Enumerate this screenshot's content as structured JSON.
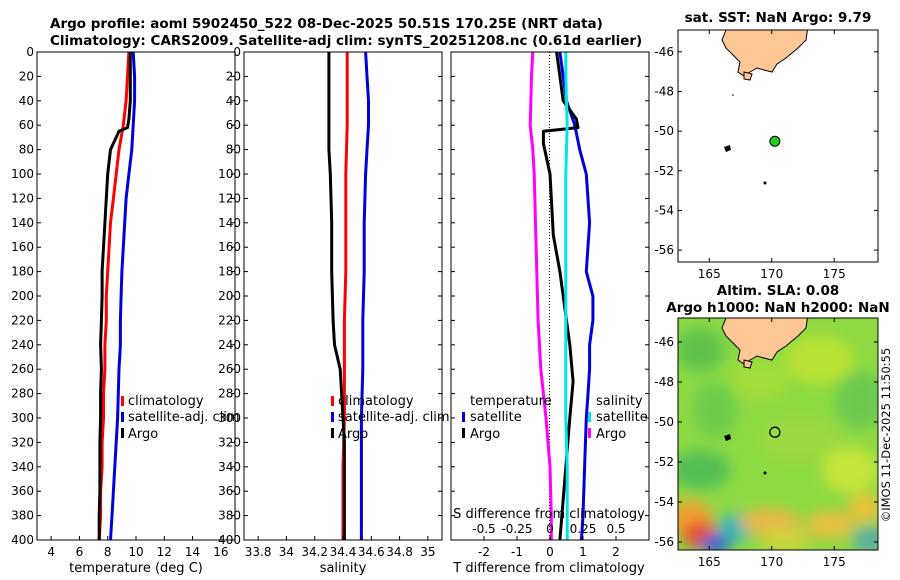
{
  "header": {
    "line1": "Argo profile: aoml 5902450_522 08-Dec-2025 50.51S 170.25E (NRT data)",
    "line2": "Climatology: CARS2009. Satellite-adj clim: synTS_20251208.nc (0.61d earlier)"
  },
  "watermark": "©IMOS 11-Dec-2025 11:50:55",
  "colors": {
    "climatology": "#ff0000",
    "satellite": "#0000dd",
    "argo": "#000000",
    "salinity_sat": "#00e5e5",
    "salinity_diff": "#ff00ff",
    "land": "#fdc795",
    "float_marker": "#22cc22"
  },
  "chart_data": [
    {
      "type": "line",
      "name": "temperature-profile",
      "xlabel": "temperature (deg C)",
      "ylabel": "",
      "xlim": [
        3,
        17
      ],
      "xticks": [
        4,
        6,
        8,
        10,
        12,
        14,
        16
      ],
      "ylim": [
        400,
        0
      ],
      "yticks": [
        0,
        20,
        40,
        60,
        80,
        100,
        120,
        140,
        160,
        180,
        200,
        220,
        240,
        260,
        280,
        300,
        320,
        340,
        360,
        380,
        400
      ],
      "legend": [
        "climatology",
        "satellite-adj. clim",
        "Argo"
      ],
      "series": [
        {
          "name": "climatology",
          "color": "#ff0000",
          "points": [
            [
              9.5,
              0
            ],
            [
              9.4,
              20
            ],
            [
              9.3,
              40
            ],
            [
              9.1,
              60
            ],
            [
              8.8,
              80
            ],
            [
              8.6,
              100
            ],
            [
              8.4,
              120
            ],
            [
              8.2,
              140
            ],
            [
              8.1,
              160
            ],
            [
              8.0,
              180
            ],
            [
              7.9,
              200
            ],
            [
              7.9,
              220
            ],
            [
              7.8,
              240
            ],
            [
              7.8,
              260
            ],
            [
              7.7,
              280
            ],
            [
              7.7,
              300
            ],
            [
              7.6,
              320
            ],
            [
              7.6,
              340
            ],
            [
              7.5,
              360
            ],
            [
              7.5,
              380
            ],
            [
              7.4,
              400
            ]
          ]
        },
        {
          "name": "satellite-adj. clim",
          "color": "#0000dd",
          "points": [
            [
              9.8,
              0
            ],
            [
              9.9,
              20
            ],
            [
              9.9,
              40
            ],
            [
              9.8,
              60
            ],
            [
              9.7,
              80
            ],
            [
              9.5,
              100
            ],
            [
              9.3,
              120
            ],
            [
              9.2,
              140
            ],
            [
              9.1,
              160
            ],
            [
              9.0,
              180
            ],
            [
              8.95,
              200
            ],
            [
              8.9,
              220
            ],
            [
              8.9,
              240
            ],
            [
              8.8,
              260
            ],
            [
              8.75,
              280
            ],
            [
              8.7,
              300
            ],
            [
              8.6,
              320
            ],
            [
              8.5,
              340
            ],
            [
              8.4,
              360
            ],
            [
              8.3,
              380
            ],
            [
              8.2,
              400
            ]
          ]
        },
        {
          "name": "Argo",
          "color": "#000000",
          "points": [
            [
              9.6,
              0
            ],
            [
              9.6,
              20
            ],
            [
              9.6,
              40
            ],
            [
              9.5,
              55
            ],
            [
              9.4,
              62
            ],
            [
              8.8,
              65
            ],
            [
              8.6,
              70
            ],
            [
              8.2,
              80
            ],
            [
              8.0,
              100
            ],
            [
              7.9,
              120
            ],
            [
              7.8,
              140
            ],
            [
              7.7,
              160
            ],
            [
              7.6,
              180
            ],
            [
              7.6,
              200
            ],
            [
              7.55,
              220
            ],
            [
              7.5,
              240
            ],
            [
              7.55,
              260
            ],
            [
              7.5,
              280
            ],
            [
              7.5,
              300
            ],
            [
              7.45,
              320
            ],
            [
              7.45,
              340
            ],
            [
              7.45,
              360
            ],
            [
              7.4,
              380
            ],
            [
              7.4,
              400
            ]
          ]
        }
      ]
    },
    {
      "type": "line",
      "name": "salinity-profile",
      "xlabel": "salinity",
      "xlim": [
        33.7,
        35.1
      ],
      "xticks": [
        33.8,
        34,
        34.2,
        34.4,
        34.6,
        34.8,
        35
      ],
      "xticklabels": [
        "33.8",
        "34",
        "34.2",
        "34.4",
        "34.6",
        "34.8",
        "35"
      ],
      "ylim": [
        400,
        0
      ],
      "legend": [
        "climatology",
        "satellite-adj. clim",
        "Argo"
      ],
      "series": [
        {
          "name": "climatology",
          "color": "#ff0000",
          "points": [
            [
              34.43,
              0
            ],
            [
              34.43,
              20
            ],
            [
              34.43,
              60
            ],
            [
              34.42,
              100
            ],
            [
              34.42,
              140
            ],
            [
              34.42,
              180
            ],
            [
              34.41,
              220
            ],
            [
              34.41,
              260
            ],
            [
              34.41,
              300
            ],
            [
              34.4,
              340
            ],
            [
              34.4,
              380
            ],
            [
              34.4,
              400
            ]
          ]
        },
        {
          "name": "satellite-adj. clim",
          "color": "#0000dd",
          "points": [
            [
              34.56,
              0
            ],
            [
              34.57,
              20
            ],
            [
              34.58,
              40
            ],
            [
              34.58,
              60
            ],
            [
              34.57,
              80
            ],
            [
              34.56,
              100
            ],
            [
              34.55,
              140
            ],
            [
              34.55,
              180
            ],
            [
              34.54,
              220
            ],
            [
              34.54,
              260
            ],
            [
              34.53,
              300
            ],
            [
              34.53,
              340
            ],
            [
              34.53,
              380
            ],
            [
              34.53,
              400
            ]
          ]
        },
        {
          "name": "Argo",
          "color": "#000000",
          "points": [
            [
              34.3,
              0
            ],
            [
              34.3,
              20
            ],
            [
              34.3,
              40
            ],
            [
              34.3,
              60
            ],
            [
              34.3,
              80
            ],
            [
              34.31,
              100
            ],
            [
              34.32,
              140
            ],
            [
              34.32,
              180
            ],
            [
              34.33,
              220
            ],
            [
              34.34,
              240
            ],
            [
              34.38,
              260
            ],
            [
              34.39,
              280
            ],
            [
              34.4,
              300
            ],
            [
              34.41,
              320
            ],
            [
              34.41,
              340
            ],
            [
              34.41,
              360
            ],
            [
              34.41,
              380
            ],
            [
              34.41,
              400
            ]
          ]
        }
      ]
    },
    {
      "type": "line",
      "name": "difference-from-climatology",
      "xlabel": "T difference from climatology",
      "xlabel_top": "S difference from climatology",
      "xlim": [
        -3,
        3
      ],
      "xticks": [
        -2,
        -1,
        0,
        1,
        2
      ],
      "xlim_top": [
        -0.75,
        0.75
      ],
      "xticks_top": [
        -0.5,
        -0.25,
        0,
        0.25,
        0.5
      ],
      "xticklabels_top": [
        "-0.5",
        "-0.25",
        "0",
        "0.25",
        "0.5"
      ],
      "ylim": [
        400,
        0
      ],
      "legend_left_title": "temperature",
      "legend_left": [
        "satellite",
        "Argo"
      ],
      "legend_right_title": "salinity",
      "legend_right": [
        "satellite",
        "Argo"
      ],
      "series": [
        {
          "name": "T satellite",
          "color": "#0000dd",
          "axis": "T",
          "points": [
            [
              0.3,
              0
            ],
            [
              0.4,
              20
            ],
            [
              0.5,
              40
            ],
            [
              0.75,
              60
            ],
            [
              0.9,
              80
            ],
            [
              1.1,
              100
            ],
            [
              1.2,
              140
            ],
            [
              1.1,
              180
            ],
            [
              1.3,
              200
            ],
            [
              1.3,
              220
            ],
            [
              1.2,
              240
            ],
            [
              1.2,
              260
            ],
            [
              1.15,
              280
            ],
            [
              1.1,
              300
            ],
            [
              1.05,
              340
            ],
            [
              1.0,
              380
            ],
            [
              0.95,
              400
            ]
          ]
        },
        {
          "name": "T Argo",
          "color": "#000000",
          "axis": "T",
          "points": [
            [
              0.2,
              0
            ],
            [
              0.3,
              20
            ],
            [
              0.4,
              40
            ],
            [
              0.8,
              55
            ],
            [
              0.85,
              62
            ],
            [
              -0.2,
              65
            ],
            [
              -0.2,
              75
            ],
            [
              0.0,
              100
            ],
            [
              0.1,
              150
            ],
            [
              0.3,
              180
            ],
            [
              0.4,
              200
            ],
            [
              0.6,
              240
            ],
            [
              0.7,
              270
            ],
            [
              0.6,
              300
            ],
            [
              0.3,
              400
            ]
          ]
        },
        {
          "name": "S satellite",
          "color": "#00e5e5",
          "axis": "S",
          "points": [
            [
              0.12,
              0
            ],
            [
              0.12,
              20
            ],
            [
              0.13,
              60
            ],
            [
              0.12,
              100
            ],
            [
              0.12,
              140
            ],
            [
              0.12,
              180
            ],
            [
              0.12,
              220
            ],
            [
              0.12,
              260
            ],
            [
              0.12,
              300
            ],
            [
              0.13,
              340
            ],
            [
              0.13,
              380
            ],
            [
              0.13,
              400
            ]
          ]
        },
        {
          "name": "S Argo",
          "color": "#ff00ff",
          "axis": "S",
          "points": [
            [
              -0.13,
              0
            ],
            [
              -0.14,
              20
            ],
            [
              -0.15,
              60
            ],
            [
              -0.13,
              80
            ],
            [
              -0.12,
              100
            ],
            [
              -0.11,
              140
            ],
            [
              -0.1,
              180
            ],
            [
              -0.09,
              220
            ],
            [
              -0.07,
              260
            ],
            [
              -0.03,
              300
            ],
            [
              0.0,
              340
            ],
            [
              0.01,
              380
            ],
            [
              0.01,
              400
            ]
          ]
        }
      ]
    },
    {
      "type": "map",
      "name": "sat-sst-map",
      "title": "sat. SST: NaN Argo: 9.79",
      "xlim": [
        162.5,
        178.5
      ],
      "xticks": [
        165,
        170,
        175
      ],
      "ylim": [
        -56.6,
        -44.9
      ],
      "yticks": [
        -46,
        -48,
        -50,
        -52,
        -54,
        -56
      ],
      "float_position": [
        170.25,
        -50.51
      ]
    },
    {
      "type": "heatmap",
      "name": "altim-sla-map",
      "title_line1": "Altim. SLA: 0.08",
      "title_line2": "Argo h1000: NaN h2000: NaN",
      "xlim": [
        162.5,
        178.5
      ],
      "xticks": [
        165,
        170,
        175
      ],
      "ylim": [
        -56.4,
        -44.8
      ],
      "yticks": [
        -46,
        -48,
        -50,
        -52,
        -54,
        -56
      ],
      "float_position": [
        170.25,
        -50.51
      ]
    }
  ]
}
